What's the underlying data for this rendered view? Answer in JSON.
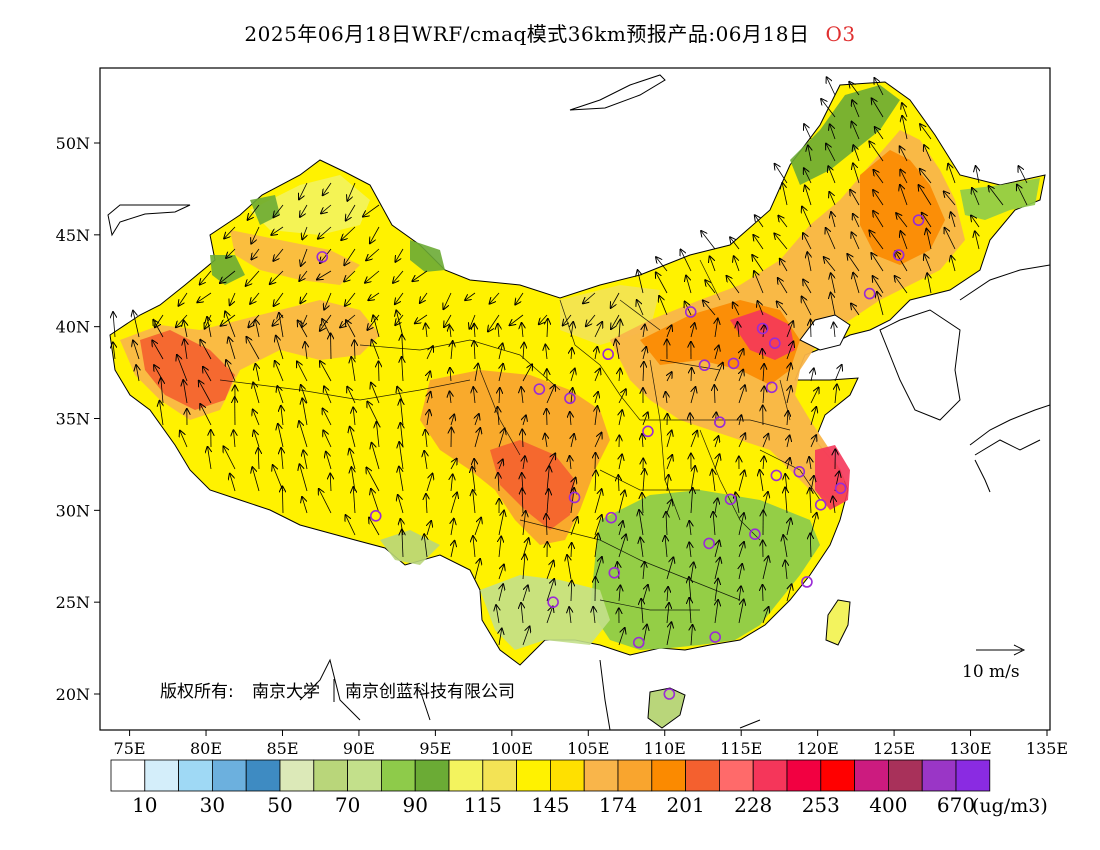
{
  "title": {
    "main": "2025年06月18日WRF/cmaq模式36km预报产品:06月18日",
    "pollutant": "O3",
    "pollutant_color": "#e03030"
  },
  "axes": {
    "y_ticks": [
      {
        "lat": 50,
        "label": "50N"
      },
      {
        "lat": 45,
        "label": "45N"
      },
      {
        "lat": 40,
        "label": "40N"
      },
      {
        "lat": 35,
        "label": "35N"
      },
      {
        "lat": 30,
        "label": "30N"
      },
      {
        "lat": 25,
        "label": "25N"
      },
      {
        "lat": 20,
        "label": "20N"
      }
    ],
    "x_ticks": [
      {
        "lon": 75,
        "label": "75E"
      },
      {
        "lon": 80,
        "label": "80E"
      },
      {
        "lon": 85,
        "label": "85E"
      },
      {
        "lon": 90,
        "label": "90E"
      },
      {
        "lon": 95,
        "label": "95E"
      },
      {
        "lon": 100,
        "label": "100E"
      },
      {
        "lon": 105,
        "label": "105E"
      },
      {
        "lon": 110,
        "label": "110E"
      },
      {
        "lon": 115,
        "label": "115E"
      },
      {
        "lon": 120,
        "label": "120E"
      },
      {
        "lon": 125,
        "label": "125E"
      },
      {
        "lon": 130,
        "label": "130E"
      },
      {
        "lon": 135,
        "label": "135E"
      }
    ],
    "lon_range": [
      73,
      135
    ],
    "lat_range": [
      18,
      54
    ]
  },
  "colorbar": {
    "colors": [
      "#ffffff",
      "#d4eefa",
      "#9fd9f5",
      "#6cb0de",
      "#3e8bc2",
      "#dce9b8",
      "#b9d67a",
      "#c3e08b",
      "#8ecb4a",
      "#6bab35",
      "#f3f35e",
      "#f3e355",
      "#fff200",
      "#ffe000",
      "#f9b54a",
      "#f9a52e",
      "#fb8a00",
      "#f4602f",
      "#ff6a6a",
      "#f5365a",
      "#f20041",
      "#ff0000",
      "#cc1b7f",
      "#a8315a",
      "#9a36c6",
      "#8a2be2"
    ],
    "labels": [
      "10",
      "30",
      "50",
      "70",
      "90",
      "115",
      "145",
      "174",
      "201",
      "228",
      "253",
      "400",
      "670"
    ],
    "unit": "(ug/m3)"
  },
  "copyright": {
    "prefix": "版权所有:",
    "org1": "南京大学",
    "org2": "南京创蓝科技有限公司"
  },
  "wind_reference": {
    "label": "10 m/s"
  },
  "stations": [
    {
      "lon": 87.6,
      "lat": 43.8
    },
    {
      "lon": 91.1,
      "lat": 29.7
    },
    {
      "lon": 101.8,
      "lat": 36.6
    },
    {
      "lon": 103.8,
      "lat": 36.1
    },
    {
      "lon": 106.3,
      "lat": 38.5
    },
    {
      "lon": 108.9,
      "lat": 34.3
    },
    {
      "lon": 111.7,
      "lat": 40.8
    },
    {
      "lon": 112.6,
      "lat": 37.9
    },
    {
      "lon": 114.5,
      "lat": 38.0
    },
    {
      "lon": 116.4,
      "lat": 39.9
    },
    {
      "lon": 117.2,
      "lat": 39.1
    },
    {
      "lon": 117.0,
      "lat": 36.7
    },
    {
      "lon": 113.6,
      "lat": 34.8
    },
    {
      "lon": 117.3,
      "lat": 31.9
    },
    {
      "lon": 118.8,
      "lat": 32.1
    },
    {
      "lon": 120.2,
      "lat": 30.3
    },
    {
      "lon": 121.5,
      "lat": 31.2
    },
    {
      "lon": 114.3,
      "lat": 30.6
    },
    {
      "lon": 112.9,
      "lat": 28.2
    },
    {
      "lon": 115.9,
      "lat": 28.7
    },
    {
      "lon": 119.3,
      "lat": 26.1
    },
    {
      "lon": 113.3,
      "lat": 23.1
    },
    {
      "lon": 108.3,
      "lat": 22.8
    },
    {
      "lon": 110.3,
      "lat": 20.0
    },
    {
      "lon": 106.7,
      "lat": 26.6
    },
    {
      "lon": 102.7,
      "lat": 25.0
    },
    {
      "lon": 104.1,
      "lat": 30.7
    },
    {
      "lon": 106.5,
      "lat": 29.6
    },
    {
      "lon": 123.4,
      "lat": 41.8
    },
    {
      "lon": 125.3,
      "lat": 43.9
    },
    {
      "lon": 126.6,
      "lat": 45.8
    }
  ]
}
